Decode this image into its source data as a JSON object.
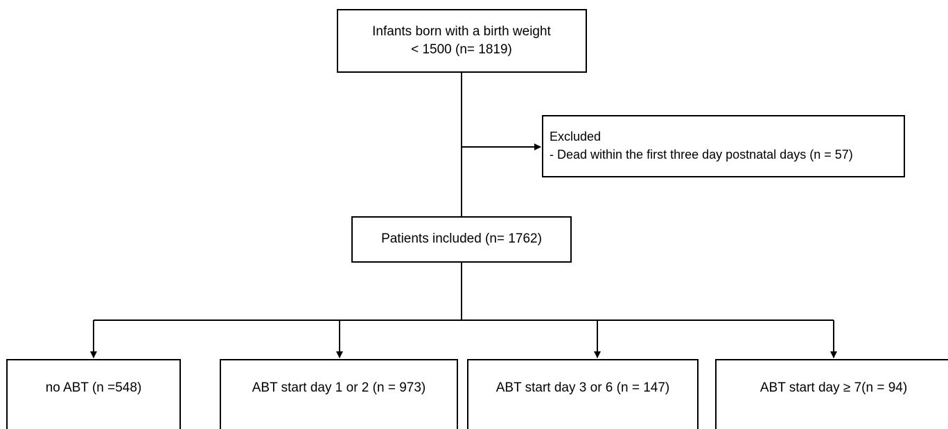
{
  "nodes": [
    {
      "label": [
        "Infants born with a birth weight",
        "< 1500 (n= 1819)"
      ]
    },
    {
      "label": [
        "Excluded",
        "- Dead within the first three day postnatal days (n = 57)"
      ]
    },
    {
      "label": [
        "Patients included (n= 1762)"
      ]
    },
    {
      "label": [
        "no ABT (n =548)"
      ]
    },
    {
      "label": [
        "ABT start day 1 or 2 (n = 973)"
      ]
    },
    {
      "label": [
        "ABT start day 3 or 6 (n = 147)"
      ]
    },
    {
      "label": [
        "ABT start day ≥ 7(n = 94)"
      ]
    }
  ]
}
